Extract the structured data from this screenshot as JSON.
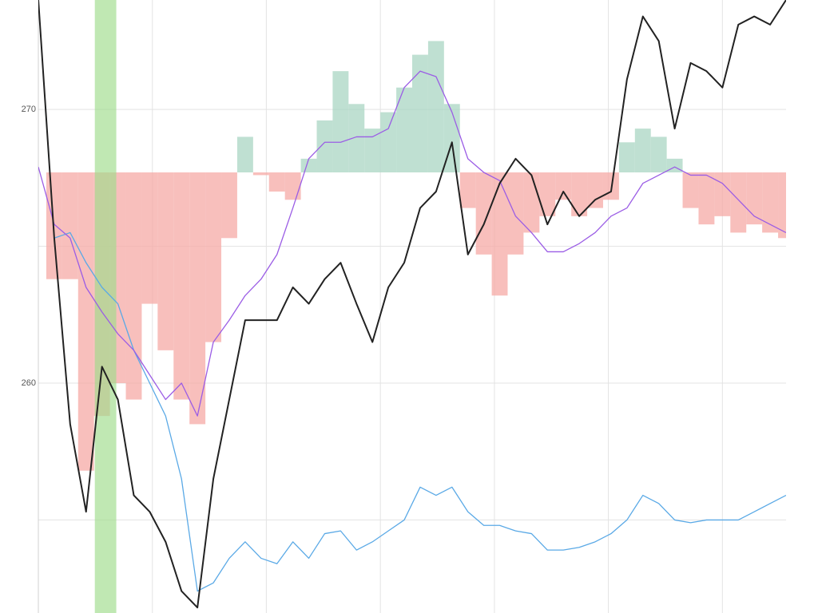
{
  "chart_data": {
    "type": "line",
    "x": [
      0,
      1,
      2,
      3,
      4,
      5,
      6,
      7,
      8,
      9,
      10,
      11,
      12,
      13,
      14,
      15,
      16,
      17,
      18,
      19,
      20,
      21,
      22,
      23,
      24,
      25,
      26,
      27,
      28,
      29,
      30,
      31,
      32,
      33,
      34,
      35,
      36,
      37,
      38,
      39,
      40,
      41,
      42,
      43,
      44,
      45,
      46,
      47
    ],
    "xlim": [
      0,
      47
    ],
    "xticks": [
      0,
      7.17,
      14.33,
      21.5,
      28.67,
      35.83,
      43
    ],
    "ylim": [
      251.6,
      274.0
    ],
    "yticks": [
      260,
      270
    ],
    "ygrid": [
      255,
      265
    ],
    "grid": true,
    "highlight": {
      "range": [
        3.55,
        4.9
      ],
      "color": "#9edb8b"
    },
    "histogram": {
      "base": 267.7,
      "up_color": "#a9d6c3",
      "down_color": "#f6a9a6",
      "values": [
        267.7,
        263.8,
        263.8,
        256.8,
        258.8,
        260.0,
        259.4,
        262.9,
        261.2,
        259.4,
        258.5,
        261.5,
        265.3,
        269.0,
        267.6,
        267.0,
        266.7,
        268.2,
        269.6,
        271.4,
        270.2,
        269.3,
        269.9,
        270.8,
        272.0,
        272.5,
        270.2,
        266.4,
        264.7,
        263.2,
        264.7,
        265.5,
        266.1,
        266.7,
        266.1,
        266.4,
        266.7,
        268.8,
        269.3,
        269.0,
        268.2,
        266.4,
        265.8,
        266.1,
        265.5,
        265.8,
        265.5,
        265.3
      ]
    },
    "series": [
      {
        "color": "#5aa9e6",
        "width": 1.3,
        "values": [
          274.0,
          265.3,
          265.5,
          264.4,
          263.5,
          262.9,
          261.2,
          260.0,
          258.8,
          256.5,
          252.4,
          252.7,
          253.6,
          254.2,
          253.6,
          253.4,
          254.2,
          253.6,
          254.5,
          254.6,
          253.9,
          254.2,
          254.6,
          255.0,
          256.2,
          255.9,
          256.2,
          255.3,
          254.8,
          254.8,
          254.6,
          254.5,
          253.9,
          253.9,
          254.0,
          254.2,
          254.5,
          255.0,
          255.9,
          255.6,
          255.0,
          254.9,
          255.0,
          255.0,
          255.0,
          255.3,
          255.6,
          255.9
        ]
      },
      {
        "color": "#9b5de5",
        "width": 1.3,
        "values": [
          267.9,
          265.8,
          265.3,
          263.5,
          262.6,
          261.8,
          261.2,
          260.3,
          259.4,
          260.0,
          258.8,
          261.5,
          262.3,
          263.2,
          263.8,
          264.7,
          266.4,
          268.2,
          268.8,
          268.8,
          269.0,
          269.0,
          269.3,
          270.8,
          271.4,
          271.2,
          269.9,
          268.2,
          267.7,
          267.4,
          266.1,
          265.5,
          264.8,
          264.8,
          265.1,
          265.5,
          266.1,
          266.4,
          267.3,
          267.6,
          267.9,
          267.6,
          267.6,
          267.3,
          266.7,
          266.1,
          265.8,
          265.5
        ]
      },
      {
        "color": "#222222",
        "width": 2,
        "values": [
          274.0,
          265.3,
          258.5,
          255.3,
          260.6,
          259.4,
          255.9,
          255.3,
          254.2,
          252.4,
          251.8,
          256.5,
          259.4,
          262.3,
          262.3,
          262.3,
          263.5,
          262.9,
          263.8,
          264.4,
          262.9,
          261.5,
          263.5,
          264.4,
          266.4,
          267.0,
          268.8,
          264.7,
          265.8,
          267.3,
          268.2,
          267.6,
          265.8,
          267.0,
          266.1,
          266.7,
          267.0,
          271.1,
          273.4,
          272.5,
          269.3,
          271.7,
          271.4,
          270.8,
          273.1,
          273.4,
          273.1,
          274.0
        ]
      }
    ]
  }
}
